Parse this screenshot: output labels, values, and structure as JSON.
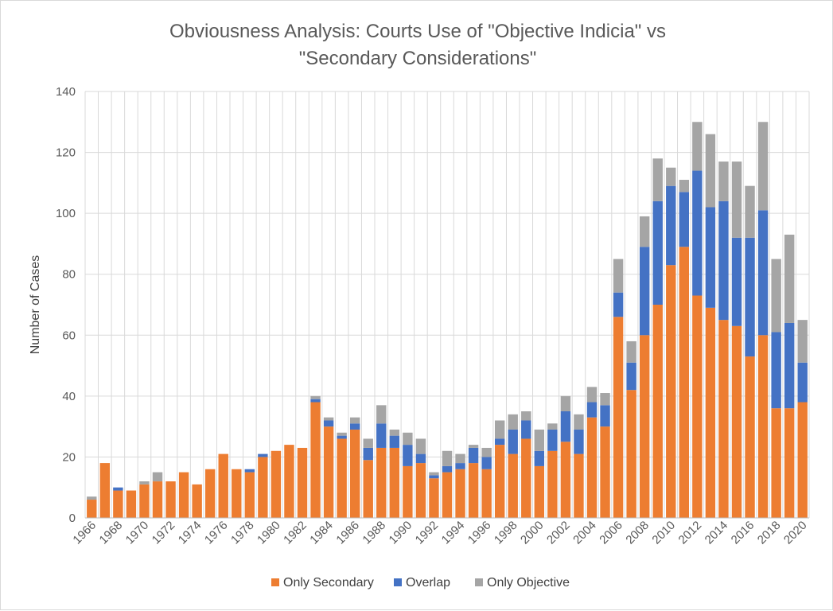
{
  "chart_data": {
    "type": "bar",
    "stacked": true,
    "title_lines": [
      "Obviousness Analysis: Courts Use of \"Objective Indicia\" vs",
      "\"Secondary Considerations\""
    ],
    "ylabel": "Number of Cases",
    "xlabel": "",
    "ylim": [
      0,
      140
    ],
    "yticks": [
      0,
      20,
      40,
      60,
      80,
      100,
      120,
      140
    ],
    "grid": {
      "horizontal": true,
      "vertical": true
    },
    "legend_position": "bottom",
    "x": [
      1966,
      1967,
      1968,
      1969,
      1970,
      1971,
      1972,
      1973,
      1974,
      1975,
      1976,
      1977,
      1978,
      1979,
      1980,
      1981,
      1982,
      1983,
      1984,
      1985,
      1986,
      1987,
      1988,
      1989,
      1990,
      1991,
      1992,
      1993,
      1994,
      1995,
      1996,
      1997,
      1998,
      1999,
      2000,
      2001,
      2002,
      2003,
      2004,
      2005,
      2006,
      2007,
      2008,
      2009,
      2010,
      2011,
      2012,
      2013,
      2014,
      2015,
      2016,
      2017,
      2018,
      2019,
      2020
    ],
    "x_tick_labels": [
      "1966",
      "1968",
      "1970",
      "1972",
      "1974",
      "1976",
      "1978",
      "1980",
      "1982",
      "1984",
      "1986",
      "1988",
      "1990",
      "1992",
      "1994",
      "1996",
      "1998",
      "2000",
      "2002",
      "2004",
      "2006",
      "2008",
      "2010",
      "2012",
      "2014",
      "2016",
      "2018",
      "2020"
    ],
    "series": [
      {
        "name": "Only Secondary",
        "color": "#ed7d31",
        "values": [
          6,
          18,
          9,
          9,
          11,
          12,
          12,
          15,
          11,
          16,
          21,
          16,
          15,
          20,
          22,
          24,
          23,
          38,
          30,
          26,
          29,
          19,
          23,
          23,
          17,
          18,
          13,
          15,
          16,
          18,
          16,
          24,
          21,
          26,
          17,
          22,
          25,
          21,
          33,
          30,
          66,
          42,
          60,
          70,
          83,
          89,
          73,
          69,
          65,
          63,
          53,
          60,
          36,
          36,
          38
        ]
      },
      {
        "name": "Overlap",
        "color": "#4472c4",
        "values": [
          0,
          0,
          1,
          0,
          0,
          0,
          0,
          0,
          0,
          0,
          0,
          0,
          1,
          1,
          0,
          0,
          0,
          1,
          2,
          1,
          2,
          4,
          8,
          4,
          7,
          3,
          1,
          2,
          2,
          5,
          4,
          2,
          8,
          6,
          5,
          7,
          10,
          8,
          5,
          7,
          8,
          9,
          29,
          34,
          26,
          18,
          41,
          33,
          39,
          29,
          39,
          41,
          25,
          28,
          13
        ]
      },
      {
        "name": "Only Objective",
        "color": "#a5a5a5",
        "values": [
          1,
          0,
          0,
          0,
          1,
          3,
          0,
          0,
          0,
          0,
          0,
          0,
          0,
          0,
          0,
          0,
          0,
          1,
          1,
          1,
          2,
          3,
          6,
          2,
          4,
          5,
          1,
          5,
          3,
          1,
          3,
          6,
          5,
          3,
          7,
          2,
          5,
          5,
          5,
          4,
          11,
          7,
          10,
          14,
          6,
          4,
          16,
          24,
          13,
          25,
          17,
          29,
          24,
          29,
          14
        ]
      }
    ]
  }
}
